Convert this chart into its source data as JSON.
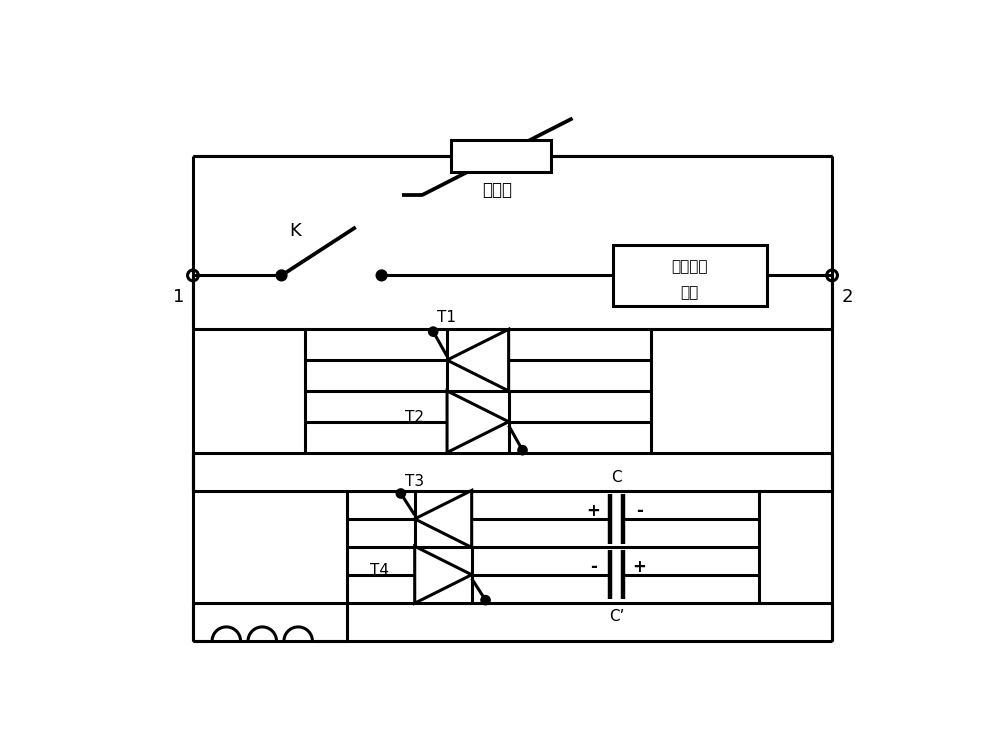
{
  "bg_color": "#ffffff",
  "line_color": "#000000",
  "lw": 2.2,
  "fig_width": 10.0,
  "fig_height": 7.55,
  "labels": {
    "node1": "1",
    "node2": "2",
    "switch_k": "K",
    "arrester": "避雷器",
    "current_module_line1": "电流转移",
    "current_module_line2": "模块",
    "T1": "T1",
    "T2": "T2",
    "T3": "T3",
    "T4": "T4",
    "C": "C",
    "Cprime": "C’"
  }
}
